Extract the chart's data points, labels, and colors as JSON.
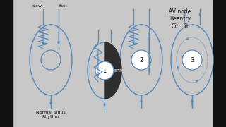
{
  "bg_color": "#c8c8c8",
  "border_color": "#111111",
  "line_color": "#5588bb",
  "text_color": "#111111",
  "erp_color": "#333333",
  "white": "#ffffff",
  "labels": {
    "slow": "slow",
    "fast": "fast",
    "normal": "Normal Sinus\nRhythm",
    "erp": "ERP",
    "num1": "1",
    "num2": "2",
    "num3": "3",
    "av_node": "AV node\nReentry\nCircuit"
  },
  "figsize": [
    3.2,
    1.8
  ],
  "dpi": 100
}
